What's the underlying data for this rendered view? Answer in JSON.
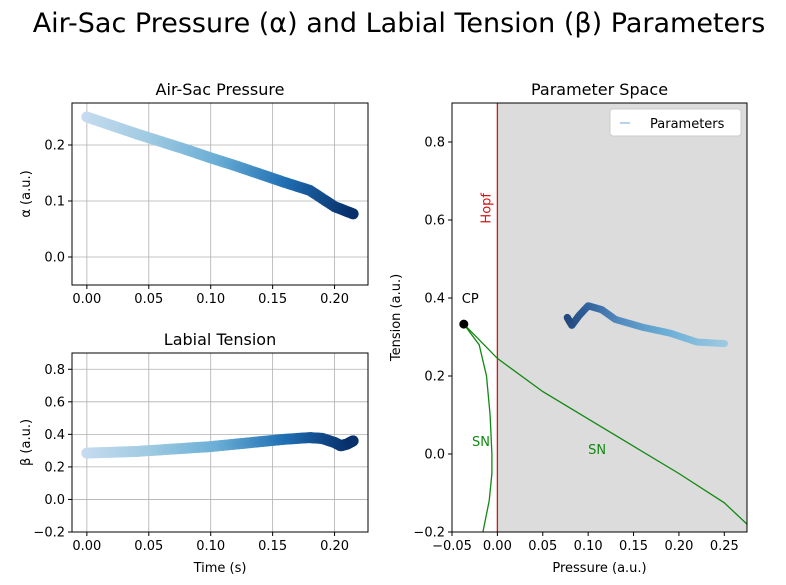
{
  "figure_title": "Air-Sac Pressure (α) and Labial Tension (β) Parameters",
  "chart_data": [
    {
      "id": "alpha",
      "type": "scatter",
      "title": "Air-Sac Pressure",
      "xlabel": "",
      "ylabel": "α (a.u.)",
      "xlim": [
        -0.012,
        0.227
      ],
      "ylim": [
        -0.05,
        0.275
      ],
      "xticks": [
        0.0,
        0.05,
        0.1,
        0.15,
        0.2
      ],
      "xtick_labels": [
        "0.00",
        "0.05",
        "0.10",
        "0.15",
        "0.20"
      ],
      "yticks": [
        0.0,
        0.1,
        0.2
      ],
      "ytick_labels": [
        "0.0",
        "0.1",
        "0.2"
      ],
      "grid": true,
      "colormap": [
        "#c6dbef",
        "#9ecae1",
        "#6baed6",
        "#2171b5",
        "#08306b"
      ],
      "x": [
        0.0,
        0.02,
        0.04,
        0.06,
        0.08,
        0.1,
        0.12,
        0.14,
        0.16,
        0.18,
        0.2,
        0.215
      ],
      "y": [
        0.25,
        0.235,
        0.22,
        0.206,
        0.192,
        0.177,
        0.163,
        0.148,
        0.133,
        0.119,
        0.09,
        0.077
      ]
    },
    {
      "id": "beta",
      "type": "scatter",
      "title": "Labial Tension",
      "xlabel": "Time (s)",
      "ylabel": "β (a.u.)",
      "xlim": [
        -0.012,
        0.227
      ],
      "ylim": [
        -0.2,
        0.9
      ],
      "xticks": [
        0.0,
        0.05,
        0.1,
        0.15,
        0.2
      ],
      "xtick_labels": [
        "0.00",
        "0.05",
        "0.10",
        "0.15",
        "0.20"
      ],
      "yticks": [
        -0.2,
        0.0,
        0.2,
        0.4,
        0.6,
        0.8
      ],
      "ytick_labels": [
        "−0.2",
        "0.0",
        "0.2",
        "0.4",
        "0.6",
        "0.8"
      ],
      "grid": true,
      "colormap": [
        "#c6dbef",
        "#9ecae1",
        "#6baed6",
        "#2171b5",
        "#08306b"
      ],
      "x": [
        0.0,
        0.02,
        0.04,
        0.06,
        0.08,
        0.1,
        0.12,
        0.14,
        0.16,
        0.18,
        0.19,
        0.2,
        0.205,
        0.21,
        0.215
      ],
      "y": [
        0.285,
        0.29,
        0.295,
        0.305,
        0.315,
        0.325,
        0.34,
        0.355,
        0.37,
        0.38,
        0.375,
        0.35,
        0.33,
        0.34,
        0.36
      ]
    },
    {
      "id": "param_space",
      "type": "line",
      "title": "Parameter Space",
      "xlabel": "Pressure (a.u.)",
      "ylabel": "Tension (a.u.)",
      "xlim": [
        -0.05,
        0.275
      ],
      "ylim": [
        -0.2,
        0.9
      ],
      "xticks": [
        -0.05,
        0.0,
        0.05,
        0.1,
        0.15,
        0.2,
        0.25
      ],
      "xtick_labels": [
        "−0.05",
        "0.00",
        "0.05",
        "0.10",
        "0.15",
        "0.20",
        "0.25"
      ],
      "yticks": [
        -0.2,
        0.0,
        0.2,
        0.4,
        0.6,
        0.8
      ],
      "ytick_labels": [
        "−0.2",
        "0.0",
        "0.2",
        "0.4",
        "0.6",
        "0.8"
      ],
      "grid": false,
      "legend": {
        "position": "top-right",
        "entries": [
          "Parameters"
        ]
      },
      "shaded_region": {
        "x_from": 0.0,
        "color": "#dcdcdc"
      },
      "hopf_line": {
        "x": 0.0,
        "color": "#dd1111",
        "label": "Hopf"
      },
      "sn_upper": {
        "color": "#118811",
        "label": "SN",
        "x": [
          -0.037,
          0.0,
          0.05,
          0.1,
          0.15,
          0.2,
          0.25,
          0.275
        ],
        "y": [
          0.333,
          0.245,
          0.16,
          0.09,
          0.02,
          -0.05,
          -0.125,
          -0.18
        ]
      },
      "sn_lower": {
        "color": "#118811",
        "label": "SN",
        "x": [
          -0.037,
          -0.02,
          -0.012,
          -0.008,
          -0.006,
          -0.006,
          -0.009,
          -0.016
        ],
        "y": [
          0.333,
          0.28,
          0.2,
          0.1,
          0.0,
          -0.05,
          -0.12,
          -0.2
        ]
      },
      "cusp_point": {
        "x": -0.037,
        "y": 0.333,
        "label": "CP"
      },
      "parameters": {
        "name": "Parameters",
        "x": [
          0.25,
          0.22,
          0.19,
          0.16,
          0.13,
          0.115,
          0.1,
          0.09,
          0.082,
          0.077
        ],
        "y": [
          0.283,
          0.287,
          0.31,
          0.325,
          0.345,
          0.37,
          0.38,
          0.355,
          0.33,
          0.35
        ]
      }
    }
  ]
}
